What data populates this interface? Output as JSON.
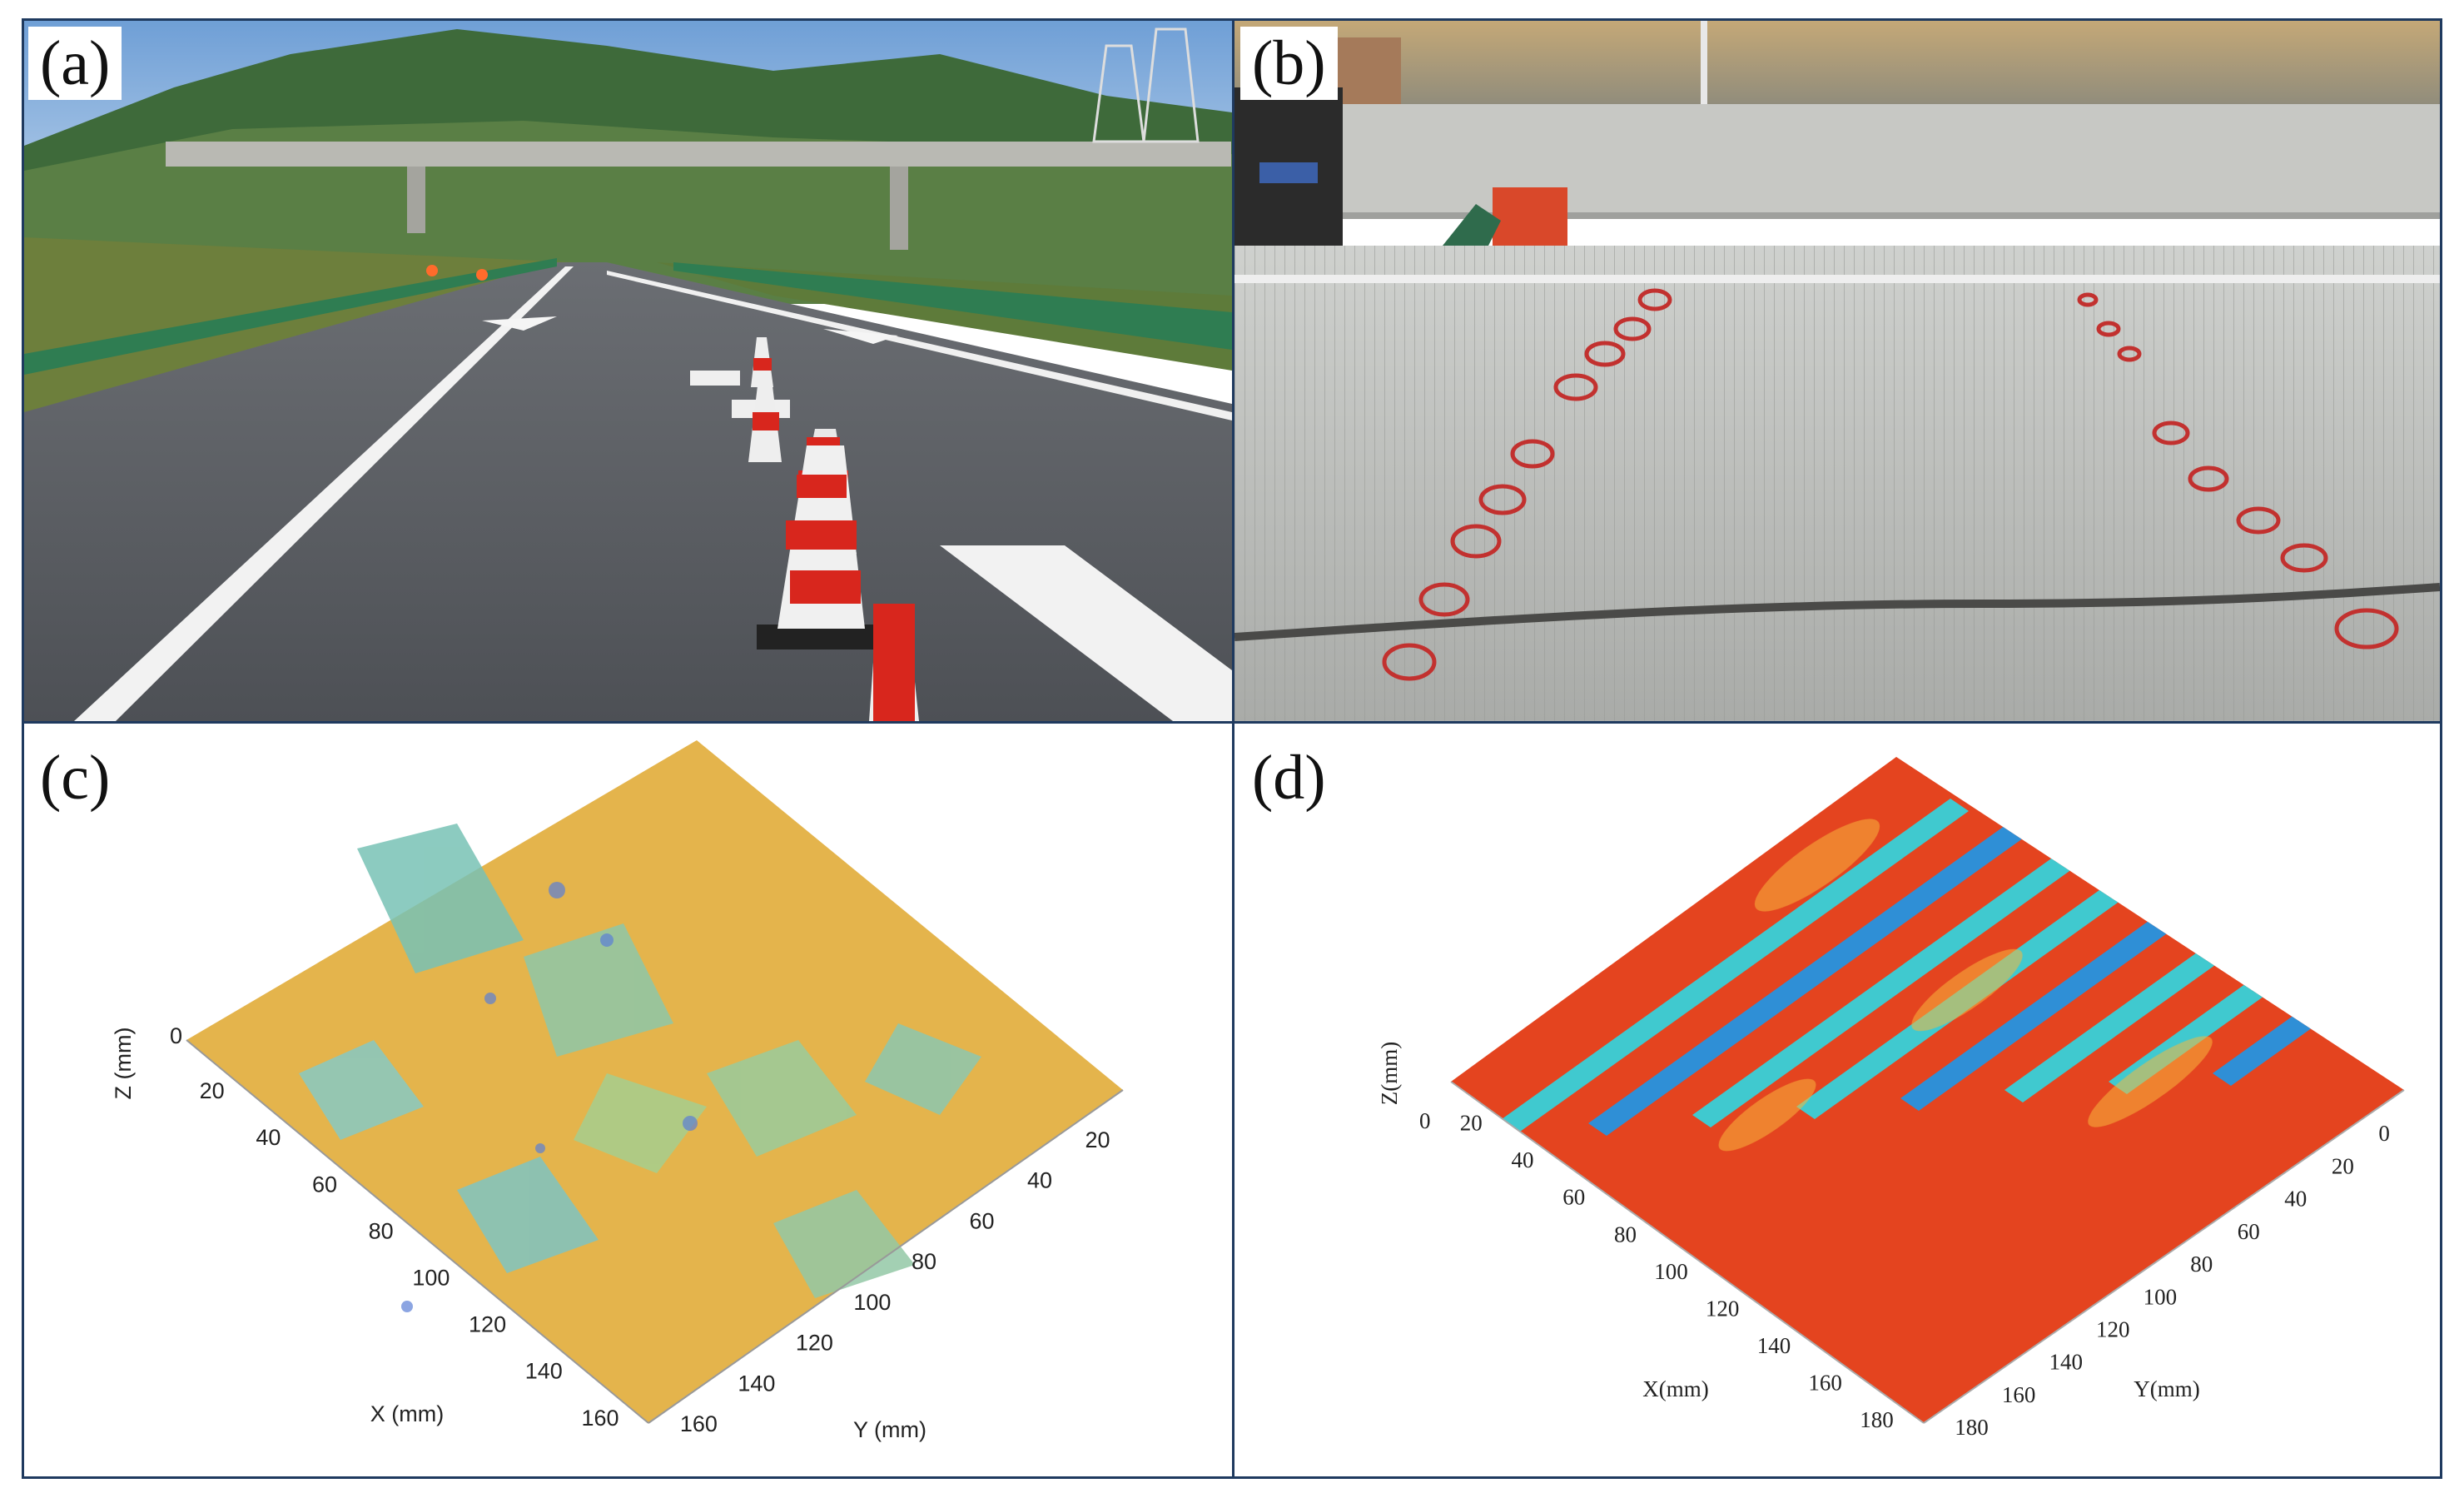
{
  "panels": {
    "a": {
      "label": "(a)"
    },
    "b": {
      "label": "(b)"
    },
    "c": {
      "label": "(c)",
      "z_label": "Z (mm)",
      "z_tick": "0",
      "x_label": "X (mm)",
      "y_label": "Y (mm)",
      "x_ticks": [
        "20",
        "40",
        "60",
        "80",
        "100",
        "120",
        "140",
        "160"
      ],
      "y_ticks": [
        "20",
        "40",
        "60",
        "80",
        "100",
        "120",
        "140",
        "160"
      ]
    },
    "d": {
      "label": "(d)",
      "z_label": "Z(mm)",
      "z_tick": "0",
      "x_label": "X(mm)",
      "y_label": "Y(mm)",
      "x_ticks": [
        "20",
        "40",
        "60",
        "80",
        "100",
        "120",
        "140",
        "160",
        "180"
      ],
      "y_ticks": [
        "0",
        "20",
        "40",
        "60",
        "80",
        "100",
        "120",
        "140",
        "160",
        "180"
      ]
    }
  },
  "colors": {
    "border": "#1f3a5f",
    "asphalt": "#55585e",
    "concrete": "#b4b6b3",
    "surface_c": "#e8b34a",
    "surface_c_valley": "#5fb8d6",
    "surface_d": "#e2401f",
    "surface_d_groove": "#3cc6d4"
  }
}
